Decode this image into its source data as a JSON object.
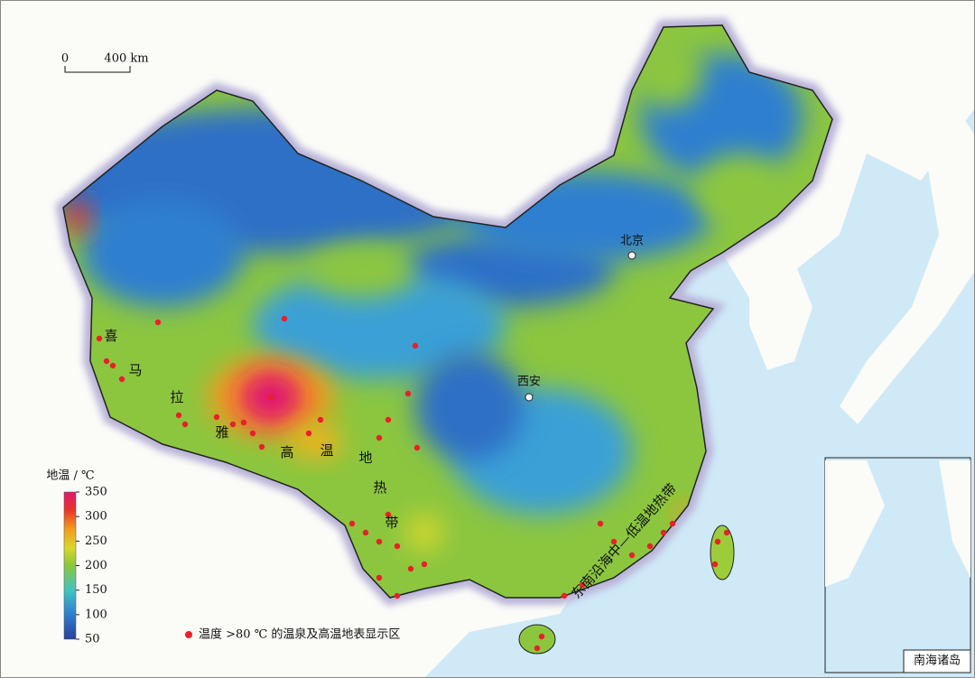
{
  "scale_bar": {
    "labels": [
      "0",
      "400 km"
    ]
  },
  "cities": [
    "北京",
    "西安"
  ],
  "belt_high": [
    "喜",
    "马",
    "拉",
    "雅",
    "高",
    "温",
    "地",
    "热",
    "带"
  ],
  "belt_low": "东南沿海中—低温地热带",
  "legend": {
    "title": "地温 / ℃",
    "range": [
      50,
      350
    ],
    "ticks": [
      50,
      100,
      150,
      200,
      250,
      300,
      350
    ]
  },
  "point_legend": "温度 >80 ℃ 的温泉及高温地表显示区",
  "inset_label": "南海诸岛"
}
